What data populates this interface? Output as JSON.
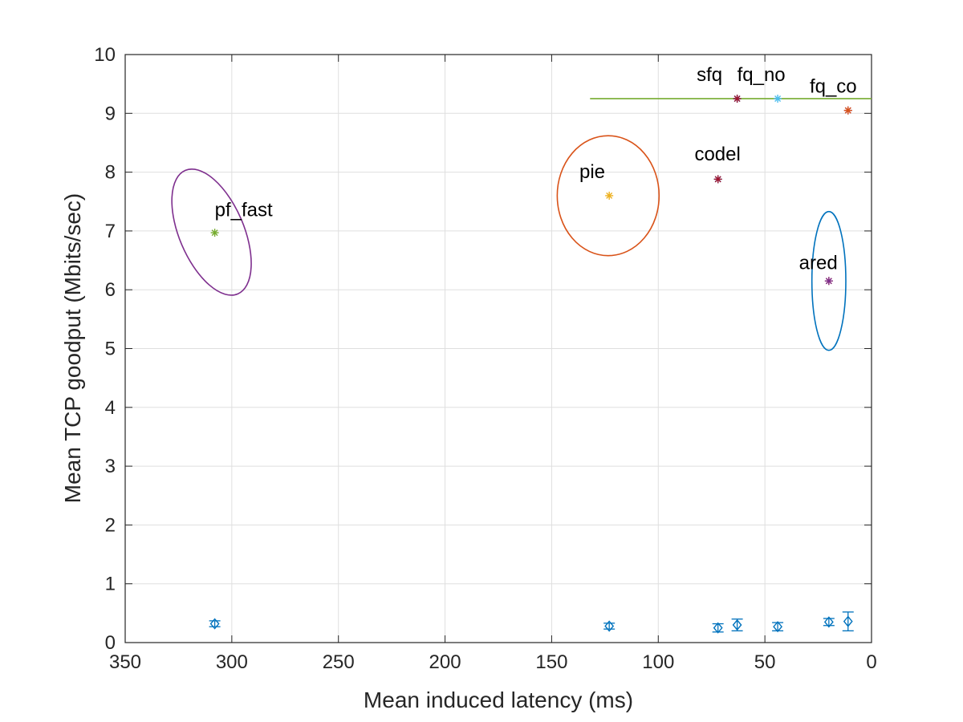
{
  "chart_data": {
    "type": "scatter",
    "xlabel": "Mean induced latency (ms)",
    "ylabel": "Mean TCP goodput (Mbits/sec)",
    "xlim": [
      0,
      350
    ],
    "ylim": [
      0,
      10
    ],
    "x_reversed": true,
    "grid": true,
    "x_ticks": [
      "350",
      "300",
      "250",
      "200",
      "150",
      "100",
      "50",
      "0"
    ],
    "y_ticks": [
      "0",
      "1",
      "2",
      "3",
      "4",
      "5",
      "6",
      "7",
      "8",
      "9",
      "10"
    ],
    "annotations": [
      {
        "text": "pf_fast",
        "x": 308,
        "y": 7.25
      },
      {
        "text": "pie",
        "x": 137,
        "y": 7.9
      },
      {
        "text": "codel",
        "x": 83,
        "y": 8.2
      },
      {
        "text": "sfq",
        "x": 82,
        "y": 9.55
      },
      {
        "text": "fq_no",
        "x": 63,
        "y": 9.55
      },
      {
        "text": "fq_co",
        "x": 29,
        "y": 9.35
      },
      {
        "text": "ared",
        "x": 34,
        "y": 6.35
      }
    ],
    "goodput_points": [
      {
        "x": 308,
        "y": 6.97,
        "color": "#77ac30"
      },
      {
        "x": 123,
        "y": 7.6,
        "color": "#edb120"
      },
      {
        "x": 72,
        "y": 7.88,
        "color": "#0072bd"
      },
      {
        "x": 72,
        "y": 7.88,
        "color": "#a2142f"
      },
      {
        "x": 63,
        "y": 9.25,
        "color": "#0072bd"
      },
      {
        "x": 63,
        "y": 9.25,
        "color": "#a2142f"
      },
      {
        "x": 44,
        "y": 9.25,
        "color": "#4dbeee"
      },
      {
        "x": 11,
        "y": 9.05,
        "color": "#7e2f8e"
      },
      {
        "x": 11,
        "y": 9.05,
        "color": "#d95319"
      },
      {
        "x": 20,
        "y": 6.15,
        "color": "#d95319"
      },
      {
        "x": 20,
        "y": 6.15,
        "color": "#7e2f8e"
      }
    ],
    "ellipses": [
      {
        "cx": 309.5,
        "cy": 6.98,
        "rx_units": 2.0,
        "ry_units": 0.55,
        "angle_deg": 67,
        "color": "#7e2f8e"
      },
      {
        "cx": 123.5,
        "cy": 7.6,
        "rx_units": 1.5,
        "ry_units": 1.02,
        "angle_deg": 0,
        "color": "#d95319"
      },
      {
        "cx": 20,
        "cy": 6.15,
        "rx_units": 0.45,
        "ry_units": 1.18,
        "angle_deg": 0,
        "color": "#0072bd"
      }
    ],
    "horizontal_line": {
      "x_from": 132,
      "x_to": 0,
      "y": 9.25,
      "color": "#77ac30"
    },
    "latency_markers": [
      {
        "x": 308,
        "y": 0.32,
        "err": 0.05
      },
      {
        "x": 123,
        "y": 0.28,
        "err": 0.05
      },
      {
        "x": 72,
        "y": 0.25,
        "err": 0.07
      },
      {
        "x": 63,
        "y": 0.3,
        "err": 0.1
      },
      {
        "x": 44,
        "y": 0.27,
        "err": 0.07
      },
      {
        "x": 20,
        "y": 0.35,
        "err": 0.06
      },
      {
        "x": 11,
        "y": 0.36,
        "err": 0.16
      }
    ],
    "marker_color": "#0072bd"
  }
}
